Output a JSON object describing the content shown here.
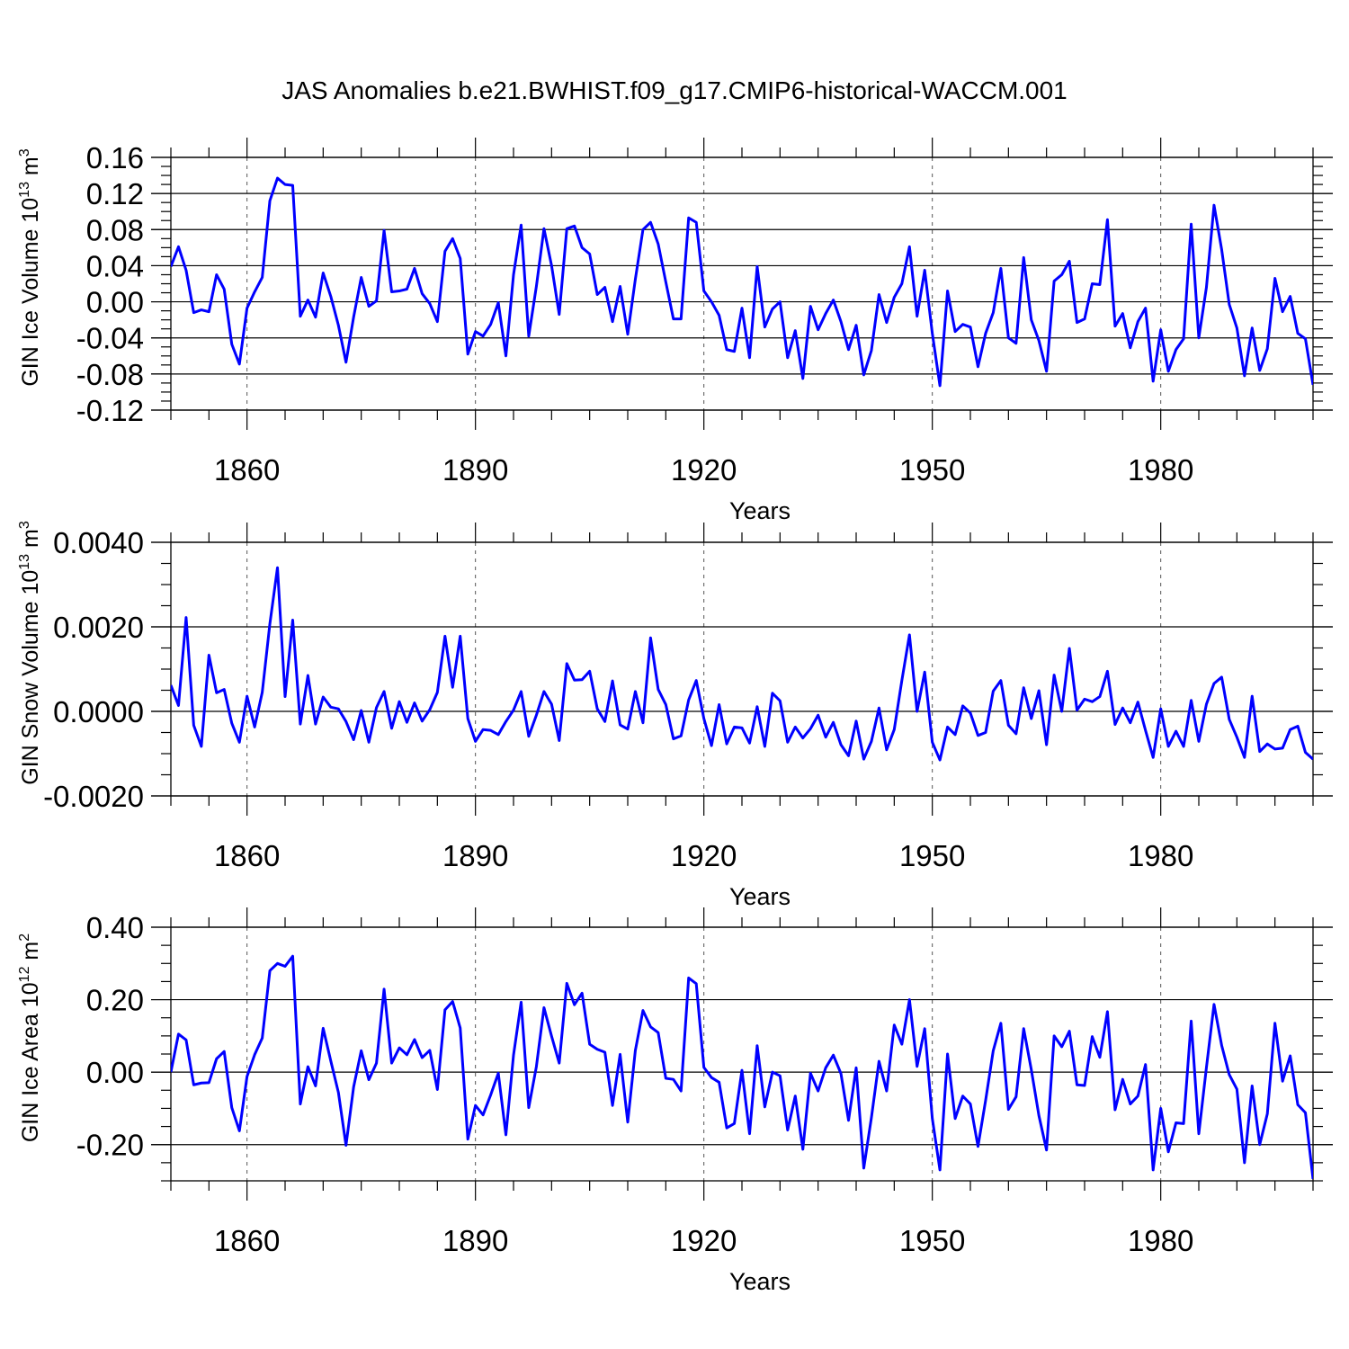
{
  "title": "JAS Anomalies b.e21.BWHIST.f09_g17.CMIP6-historical-WACCM.001",
  "colors": {
    "line": "#0000ff",
    "axis": "#000000",
    "grid": "#555555"
  },
  "chart_data": [
    {
      "type": "line",
      "name": "ice-volume",
      "ylabel": "GIN Ice Volume 10",
      "ylabel_exp": "13",
      "ylabel_unit": " m",
      "ylabel_unit_exp": "3",
      "xlabel": "Years",
      "xlim": [
        1850,
        2000
      ],
      "ylim": [
        -0.12,
        0.16
      ],
      "yticks": [
        -0.12,
        -0.08,
        -0.04,
        0.0,
        0.04,
        0.08,
        0.12,
        0.16
      ],
      "ytick_labels": [
        "-0.12",
        "-0.08",
        "-0.04",
        "0.00",
        "0.04",
        "0.08",
        "0.12",
        "0.16"
      ],
      "yminor_step": 0.01,
      "xticks": [
        1860,
        1890,
        1920,
        1950,
        1980
      ],
      "xtick_labels": [
        "1860",
        "1890",
        "1920",
        "1950",
        "1980"
      ],
      "xminor_step": 5,
      "gridlines_x": [
        1860,
        1890,
        1920,
        1950,
        1980
      ],
      "x_start": 1850,
      "values": [
        0.039,
        0.061,
        0.035,
        -0.012,
        -0.009,
        -0.011,
        0.03,
        0.014,
        -0.047,
        -0.069,
        -0.007,
        0.011,
        0.027,
        0.112,
        0.137,
        0.13,
        0.129,
        -0.016,
        0.002,
        -0.017,
        0.032,
        0.006,
        -0.026,
        -0.067,
        -0.017,
        0.027,
        -0.005,
        0.001,
        0.079,
        0.011,
        0.012,
        0.014,
        0.037,
        0.009,
        -0.002,
        -0.022,
        0.056,
        0.07,
        0.048,
        -0.058,
        -0.033,
        -0.038,
        -0.025,
        -0.001,
        -0.06,
        0.03,
        0.085,
        -0.038,
        0.017,
        0.081,
        0.04,
        -0.014,
        0.081,
        0.084,
        0.06,
        0.053,
        0.008,
        0.016,
        -0.022,
        0.017,
        -0.036,
        0.025,
        0.08,
        0.088,
        0.064,
        0.022,
        -0.019,
        -0.019,
        0.093,
        0.088,
        0.012,
        0.0,
        -0.015,
        -0.053,
        -0.055,
        -0.007,
        -0.062,
        0.039,
        -0.028,
        -0.008,
        0.0,
        -0.062,
        -0.032,
        -0.085,
        -0.005,
        -0.031,
        -0.013,
        0.002,
        -0.022,
        -0.053,
        -0.026,
        -0.081,
        -0.054,
        0.008,
        -0.023,
        0.005,
        0.02,
        0.061,
        -0.016,
        0.035,
        -0.035,
        -0.093,
        0.012,
        -0.033,
        -0.025,
        -0.028,
        -0.072,
        -0.035,
        -0.012,
        0.037,
        -0.04,
        -0.046,
        0.049,
        -0.02,
        -0.043,
        -0.077,
        0.023,
        0.03,
        0.045,
        -0.023,
        -0.019,
        0.02,
        0.019,
        0.091,
        -0.027,
        -0.013,
        -0.051,
        -0.022,
        -0.007,
        -0.088,
        -0.031,
        -0.077,
        -0.053,
        -0.041,
        0.086,
        -0.04,
        0.016,
        0.107,
        0.058,
        -0.003,
        -0.029,
        -0.082,
        -0.029,
        -0.076,
        -0.052,
        0.026,
        -0.011,
        0.006,
        -0.035,
        -0.041,
        -0.092
      ]
    },
    {
      "type": "line",
      "name": "snow-volume",
      "ylabel": "GIN Snow Volume 10",
      "ylabel_exp": "13",
      "ylabel_unit": " m",
      "ylabel_unit_exp": "3",
      "xlabel": "Years",
      "xlim": [
        1850,
        2000
      ],
      "ylim": [
        -0.002,
        0.004
      ],
      "yticks": [
        -0.002,
        0.0,
        0.002,
        0.004
      ],
      "ytick_labels": [
        "-0.0020",
        "0.0000",
        "0.0020",
        "0.0040"
      ],
      "yminor_step": 0.0005,
      "xticks": [
        1860,
        1890,
        1920,
        1950,
        1980
      ],
      "xtick_labels": [
        "1860",
        "1890",
        "1920",
        "1950",
        "1980"
      ],
      "xminor_step": 5,
      "gridlines_x": [
        1860,
        1890,
        1920,
        1950,
        1980
      ],
      "x_start": 1850,
      "values": [
        0.00062,
        0.00014,
        0.00222,
        -0.00033,
        -0.00083,
        0.00133,
        0.00044,
        0.00052,
        -0.00028,
        -0.00073,
        0.00036,
        -0.00037,
        0.00045,
        0.00207,
        0.0034,
        0.00035,
        0.00216,
        -0.0003,
        0.00085,
        -0.0003,
        0.00034,
        0.0001,
        6e-05,
        -0.00024,
        -0.00067,
        2e-05,
        -0.00073,
        9e-05,
        0.00047,
        -0.0004,
        0.00023,
        -0.00026,
        0.0002,
        -0.00023,
        4e-05,
        0.00045,
        0.00178,
        0.00057,
        0.00178,
        -0.00017,
        -0.00071,
        -0.00043,
        -0.00045,
        -0.00055,
        -0.00024,
        3e-05,
        0.00047,
        -0.00059,
        -9e-05,
        0.00047,
        0.00017,
        -0.00069,
        0.00113,
        0.00074,
        0.00075,
        0.00095,
        6e-05,
        -0.00024,
        0.00072,
        -0.00032,
        -0.00042,
        0.00047,
        -0.00027,
        0.00174,
        0.00052,
        0.00016,
        -0.00065,
        -0.00058,
        0.00027,
        0.00073,
        -0.00017,
        -0.00081,
        0.00016,
        -0.00077,
        -0.00037,
        -0.00039,
        -0.00075,
        0.00011,
        -0.00083,
        0.00043,
        0.00025,
        -0.00073,
        -0.00037,
        -0.00063,
        -0.00041,
        -9e-05,
        -0.00061,
        -0.00026,
        -0.00079,
        -0.00105,
        -0.00023,
        -0.00113,
        -0.00071,
        8e-05,
        -0.00091,
        -0.00043,
        0.00073,
        0.00181,
        0.0,
        0.00093,
        -0.00073,
        -0.00115,
        -0.00037,
        -0.00055,
        0.00013,
        -4e-05,
        -0.00057,
        -0.0005,
        0.00048,
        0.00073,
        -0.00033,
        -0.00053,
        0.00056,
        -0.00017,
        0.00049,
        -0.00079,
        0.00086,
        0.0,
        0.00149,
        3e-05,
        0.00029,
        0.00023,
        0.00035,
        0.00095,
        -0.00031,
        8e-05,
        -0.00027,
        0.00022,
        -0.00045,
        -0.00109,
        6e-05,
        -0.00083,
        -0.00047,
        -0.00083,
        0.00026,
        -0.00071,
        0.00017,
        0.00066,
        0.00081,
        -0.00019,
        -0.00061,
        -0.00109,
        0.00036,
        -0.00095,
        -0.00077,
        -0.00089,
        -0.00087,
        -0.00043,
        -0.00035,
        -0.00097,
        -0.00113
      ]
    },
    {
      "type": "line",
      "name": "ice-area",
      "ylabel": "GIN Ice Area 10",
      "ylabel_exp": "12",
      "ylabel_unit": " m",
      "ylabel_unit_exp": "2",
      "xlabel": "Years",
      "xlim": [
        1850,
        2000
      ],
      "ylim": [
        -0.3,
        0.4
      ],
      "yticks": [
        -0.2,
        0.0,
        0.2,
        0.4
      ],
      "ytick_labels": [
        "-0.20",
        "0.00",
        "0.20",
        "0.40"
      ],
      "yminor_step": 0.05,
      "xticks": [
        1860,
        1890,
        1920,
        1950,
        1980
      ],
      "xtick_labels": [
        "1860",
        "1890",
        "1920",
        "1950",
        "1980"
      ],
      "xminor_step": 5,
      "gridlines_x": [
        1860,
        1890,
        1920,
        1950,
        1980
      ],
      "x_start": 1850,
      "values": [
        0.0,
        0.105,
        0.089,
        -0.035,
        -0.03,
        -0.029,
        0.037,
        0.057,
        -0.098,
        -0.162,
        -0.012,
        0.048,
        0.094,
        0.28,
        0.3,
        0.292,
        0.32,
        -0.088,
        0.015,
        -0.038,
        0.121,
        0.031,
        -0.056,
        -0.202,
        -0.041,
        0.059,
        -0.021,
        0.025,
        0.229,
        0.025,
        0.067,
        0.048,
        0.09,
        0.04,
        0.06,
        -0.048,
        0.172,
        0.195,
        0.122,
        -0.185,
        -0.092,
        -0.118,
        -0.063,
        -0.003,
        -0.173,
        0.047,
        0.193,
        -0.098,
        0.015,
        0.178,
        0.099,
        0.025,
        0.245,
        0.186,
        0.218,
        0.077,
        0.063,
        0.055,
        -0.092,
        0.049,
        -0.138,
        0.06,
        0.17,
        0.125,
        0.109,
        -0.017,
        -0.02,
        -0.052,
        0.26,
        0.244,
        0.013,
        -0.015,
        -0.028,
        -0.154,
        -0.142,
        0.005,
        -0.17,
        0.073,
        -0.096,
        0.0,
        -0.01,
        -0.16,
        -0.066,
        -0.213,
        -0.003,
        -0.052,
        0.012,
        0.047,
        -0.004,
        -0.133,
        0.012,
        -0.265,
        -0.126,
        0.03,
        -0.052,
        0.13,
        0.077,
        0.2,
        0.016,
        0.12,
        -0.128,
        -0.27,
        0.05,
        -0.128,
        -0.066,
        -0.088,
        -0.205,
        -0.078,
        0.059,
        0.135,
        -0.103,
        -0.068,
        0.12,
        0.007,
        -0.12,
        -0.215,
        0.1,
        0.07,
        0.113,
        -0.035,
        -0.037,
        0.098,
        0.041,
        0.167,
        -0.104,
        -0.02,
        -0.088,
        -0.066,
        0.021,
        -0.27,
        -0.1,
        -0.22,
        -0.14,
        -0.142,
        0.141,
        -0.17,
        0.013,
        0.187,
        0.074,
        -0.007,
        -0.047,
        -0.25,
        -0.038,
        -0.2,
        -0.115,
        0.135,
        -0.025,
        0.045,
        -0.09,
        -0.112,
        -0.295
      ]
    }
  ]
}
